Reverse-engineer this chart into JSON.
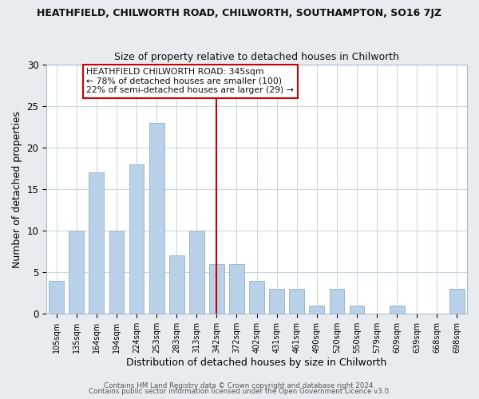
{
  "title": "HEATHFIELD, CHILWORTH ROAD, CHILWORTH, SOUTHAMPTON, SO16 7JZ",
  "subtitle": "Size of property relative to detached houses in Chilworth",
  "xlabel": "Distribution of detached houses by size in Chilworth",
  "ylabel": "Number of detached properties",
  "bar_labels": [
    "105sqm",
    "135sqm",
    "164sqm",
    "194sqm",
    "224sqm",
    "253sqm",
    "283sqm",
    "313sqm",
    "342sqm",
    "372sqm",
    "402sqm",
    "431sqm",
    "461sqm",
    "490sqm",
    "520sqm",
    "550sqm",
    "579sqm",
    "609sqm",
    "639sqm",
    "668sqm",
    "698sqm"
  ],
  "bar_values": [
    4,
    10,
    17,
    10,
    18,
    23,
    7,
    10,
    6,
    6,
    4,
    3,
    3,
    1,
    3,
    1,
    0,
    1,
    0,
    0,
    3
  ],
  "bar_color": "#b8d0e8",
  "bar_edge_color": "#9ab8d0",
  "vline_x_index": 8,
  "vline_color": "#cc0000",
  "ylim": [
    0,
    30
  ],
  "yticks": [
    0,
    5,
    10,
    15,
    20,
    25,
    30
  ],
  "annotation_title": "HEATHFIELD CHILWORTH ROAD: 345sqm",
  "annotation_line1": "← 78% of detached houses are smaller (100)",
  "annotation_line2": "22% of semi-detached houses are larger (29) →",
  "annotation_box_color": "#ffffff",
  "annotation_box_edge_color": "#cc0000",
  "footer_line1": "Contains HM Land Registry data © Crown copyright and database right 2024.",
  "footer_line2": "Contains public sector information licensed under the Open Government Licence v3.0.",
  "background_color": "#e8ecf0",
  "plot_bg_color": "#ffffff",
  "grid_color": "#c8d4dc"
}
